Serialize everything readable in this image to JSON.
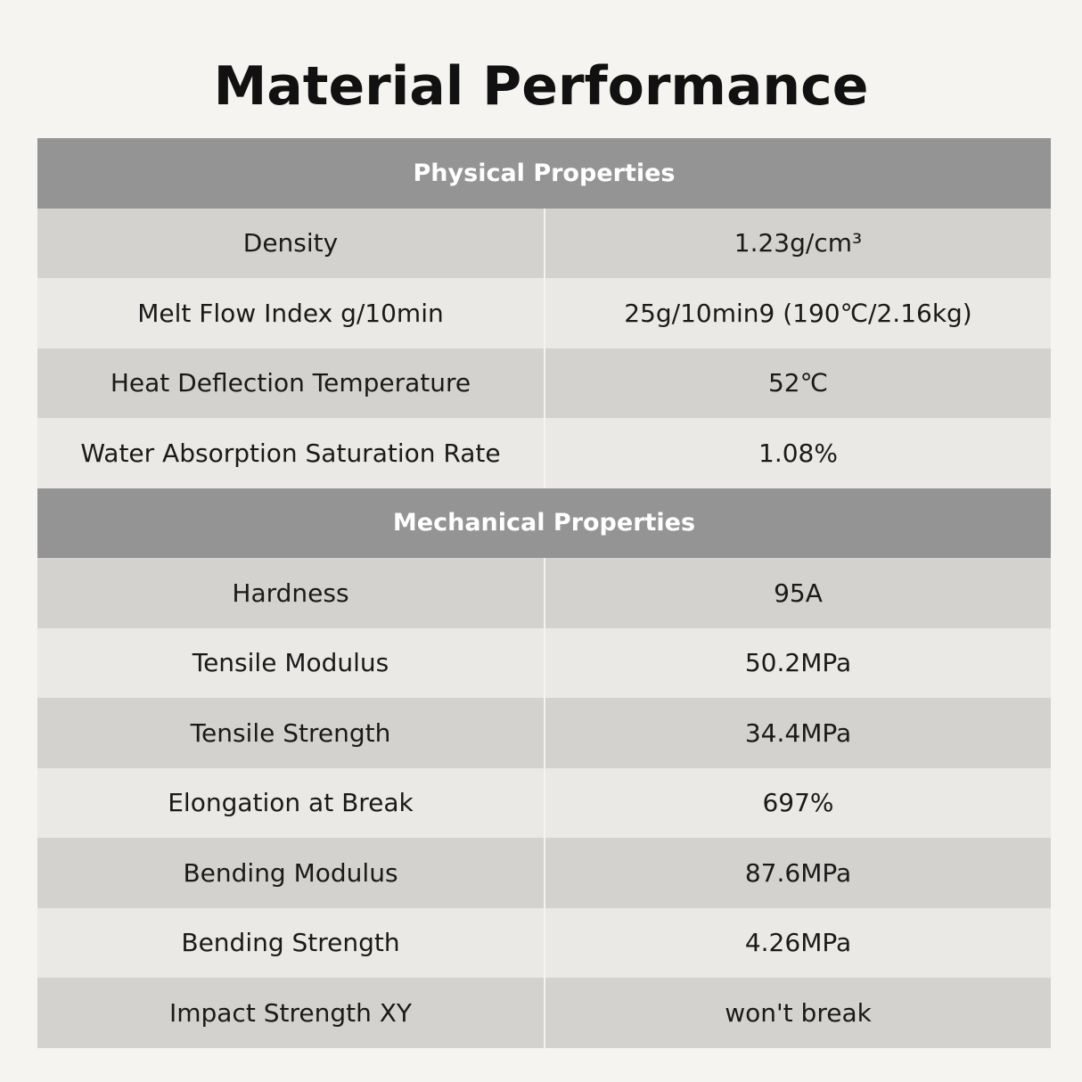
{
  "title": "Material Performance",
  "sections": [
    {
      "heading": "Physical Properties",
      "rows": [
        {
          "name": "Density",
          "value": "1.23g/cm³"
        },
        {
          "name": "Melt Flow Index g/10min",
          "value": "25g/10min9 (190℃/2.16kg)"
        },
        {
          "name": "Heat Deflection Temperature",
          "value": "52℃"
        },
        {
          "name": "Water Absorption Saturation Rate",
          "value": "1.08%"
        }
      ]
    },
    {
      "heading": "Mechanical Properties",
      "rows": [
        {
          "name": "Hardness",
          "value": "95A"
        },
        {
          "name": "Tensile Modulus",
          "value": "50.2MPa"
        },
        {
          "name": "Tensile Strength",
          "value": "34.4MPa"
        },
        {
          "name": "Elongation at Break",
          "value": "697%"
        },
        {
          "name": "Bending Modulus",
          "value": "87.6MPa"
        },
        {
          "name": "Bending Strength",
          "value": "4.26MPa"
        },
        {
          "name": "Impact Strength XY",
          "value": "won't break"
        }
      ]
    }
  ]
}
